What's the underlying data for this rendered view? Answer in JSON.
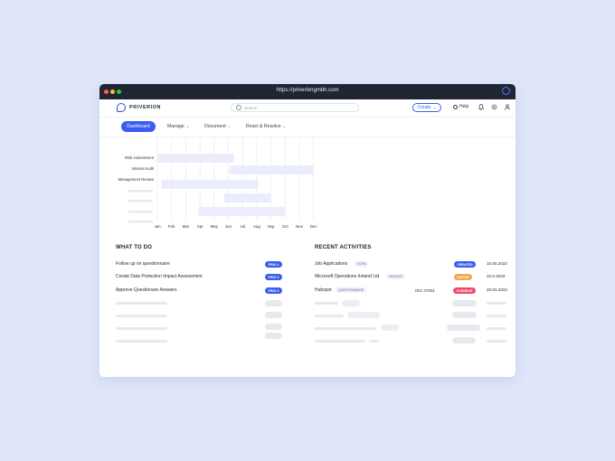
{
  "browser": {
    "url": "https://priverlongmbh.com"
  },
  "brand": {
    "name": "PRIVERION"
  },
  "search": {
    "placeholder": "Search"
  },
  "header": {
    "create_label": "Create",
    "help_label": "Help"
  },
  "nav": {
    "items": [
      "Dashboard",
      "Manage",
      "Document",
      "React & Resolve"
    ]
  },
  "chart_data": {
    "type": "gantt",
    "categories": [
      "Risk Assessment",
      "Internal Audit",
      "Management Review",
      "",
      "",
      "",
      ""
    ],
    "months": [
      "Jan",
      "Feb",
      "Mar",
      "Apr",
      "May",
      "Jun",
      "Jul",
      "Aug",
      "Sep",
      "Oct",
      "Nov",
      "Dec"
    ],
    "tasks": [
      {
        "label": "Risk Assessment",
        "start": 0,
        "end": 5.4
      },
      {
        "label": "Internal Audit",
        "start": 5.1,
        "end": 11.0
      },
      {
        "label": "Management Review",
        "start": 0.3,
        "end": 7.1
      },
      {
        "label": "",
        "start": 4.7,
        "end": 8.0
      },
      {
        "label": "",
        "start": 2.9,
        "end": 9.0
      }
    ],
    "bar_color": "#ebedfc"
  },
  "todo": {
    "title": "WHAT TO DO",
    "items": [
      {
        "text": "Follow up on questionnaire",
        "badge": "PRIO 1"
      },
      {
        "text": "Create Data Protection Impact Assessment",
        "badge": "PRIO 1"
      },
      {
        "text": "Approve Questionare Answers",
        "badge": "PRIO 2"
      }
    ]
  },
  "activities": {
    "title": "RECENT ACTIVITIES",
    "items": [
      {
        "name": "Job Applications",
        "tag": "DOPA",
        "extra": "",
        "status": "CREATED",
        "status_color": "#3b5cf0",
        "date": "15.05.2022"
      },
      {
        "name": "Microsoft Operations Ireland Ltd",
        "tag": "VENDOR",
        "extra": "",
        "status": "EDITED",
        "status_color": "#f5a64a",
        "date": "22.0.2022"
      },
      {
        "name": "Hubspot",
        "tag": "QUESTIONNAIRE",
        "extra": "ISO 27001",
        "status": "OVERDUE",
        "status_color": "#ef4b6b",
        "date": "20.02.2022"
      }
    ]
  }
}
